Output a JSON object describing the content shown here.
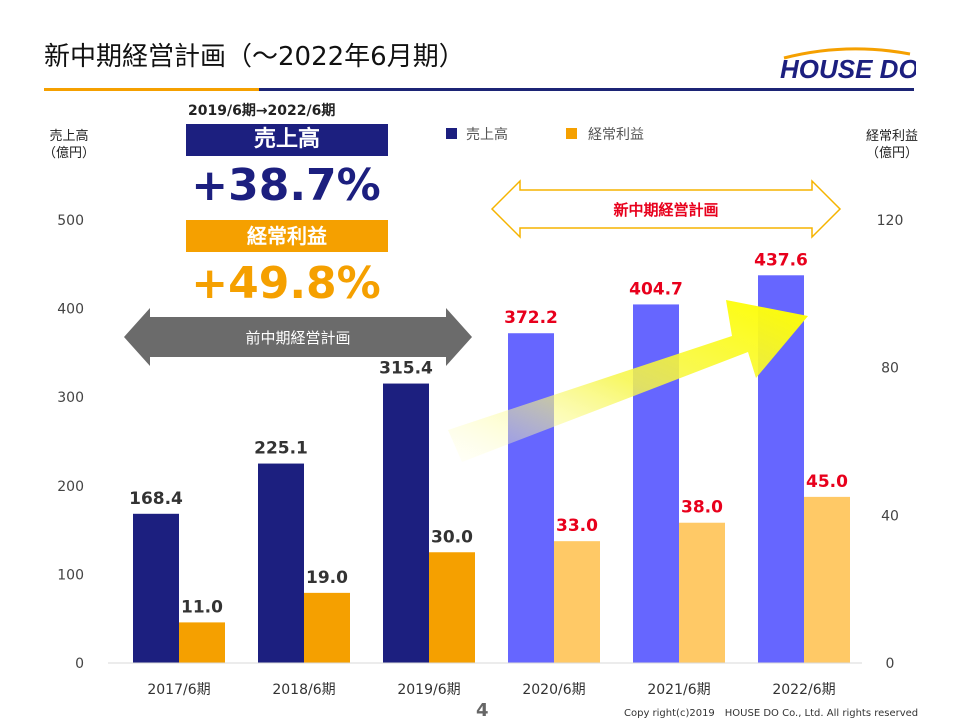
{
  "header": {
    "title": "新中期経営計画（～2022年6月期）",
    "logo_text": "HOUSE DO"
  },
  "left_axis": {
    "line1": "売上高",
    "line2": "（億円）"
  },
  "right_axis": {
    "line1": "経常利益",
    "line2": "（億円）"
  },
  "legend": {
    "sales": "売上高",
    "profit": "経常利益"
  },
  "summary": {
    "period": "2019/6期→2022/6期",
    "sales_label": "売上高",
    "sales_growth": "+38.7%",
    "profit_label": "経常利益",
    "profit_growth": "+49.8%"
  },
  "arrows": {
    "previous_plan": "前中期経営計画",
    "new_plan": "新中期経営計画"
  },
  "page_number": "4",
  "copyright": "Copy right(c)2019　HOUSE DO Co., Ltd. All rights reserved",
  "chart_data": {
    "type": "bar",
    "categories": [
      "2017/6期",
      "2018/6期",
      "2019/6期",
      "2020/6期",
      "2021/6期",
      "2022/6期"
    ],
    "series": [
      {
        "name": "売上高",
        "axis": "left",
        "values": [
          168.4,
          225.1,
          315.4,
          372.2,
          404.7,
          437.6
        ],
        "labels": [
          "168.4",
          "225.1",
          "315.4",
          "372.2",
          "404.7",
          "437.6"
        ]
      },
      {
        "name": "経常利益",
        "axis": "right",
        "values": [
          11.0,
          19.0,
          30.0,
          33.0,
          38.0,
          45.0
        ],
        "labels": [
          "11.0",
          "19.0",
          "30.0",
          "33.0",
          "38.0",
          "45.0"
        ]
      }
    ],
    "left_ylim": [
      0,
      500
    ],
    "left_ticks": [
      "0",
      "100",
      "200",
      "300",
      "400",
      "500"
    ],
    "right_ylim": [
      0,
      120
    ],
    "right_ticks": [
      "0",
      "40",
      "80",
      "120"
    ],
    "plan_start_index": 3,
    "colors": {
      "sales_actual": "#1c1f7f",
      "sales_plan": "#6666ff",
      "profit_actual": "#f5a000",
      "profit_plan": "#ffc966",
      "label_actual": "#333333",
      "label_plan": "#e8001c"
    }
  }
}
